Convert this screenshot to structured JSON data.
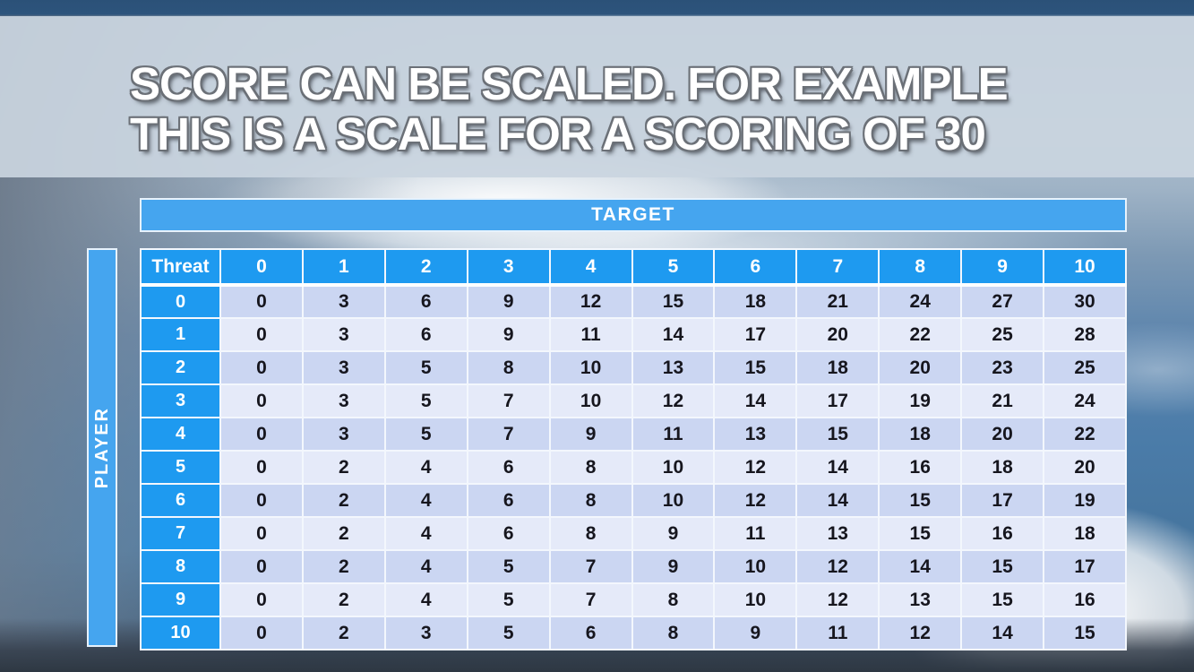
{
  "slide": {
    "title_line1": "SCORE CAN BE SCALED. FOR EXAMPLE",
    "title_line2": "THIS IS A SCALE FOR A SCORING OF 30"
  },
  "matrix": {
    "target_label": "TARGET",
    "player_label": "PLAYER",
    "corner_label": "Threat",
    "col_headers": [
      "0",
      "1",
      "2",
      "3",
      "4",
      "5",
      "6",
      "7",
      "8",
      "9",
      "10"
    ],
    "rows": [
      {
        "label": "0",
        "values": [
          0,
          3,
          6,
          9,
          12,
          15,
          18,
          21,
          24,
          27,
          30
        ]
      },
      {
        "label": "1",
        "values": [
          0,
          3,
          6,
          9,
          11,
          14,
          17,
          20,
          22,
          25,
          28
        ]
      },
      {
        "label": "2",
        "values": [
          0,
          3,
          5,
          8,
          10,
          13,
          15,
          18,
          20,
          23,
          25
        ]
      },
      {
        "label": "3",
        "values": [
          0,
          3,
          5,
          7,
          10,
          12,
          14,
          17,
          19,
          21,
          24
        ]
      },
      {
        "label": "4",
        "values": [
          0,
          3,
          5,
          7,
          9,
          11,
          13,
          15,
          18,
          20,
          22
        ]
      },
      {
        "label": "5",
        "values": [
          0,
          2,
          4,
          6,
          8,
          10,
          12,
          14,
          16,
          18,
          20
        ]
      },
      {
        "label": "6",
        "values": [
          0,
          2,
          4,
          6,
          8,
          10,
          12,
          14,
          15,
          17,
          19
        ]
      },
      {
        "label": "7",
        "values": [
          0,
          2,
          4,
          6,
          8,
          9,
          11,
          13,
          15,
          16,
          18
        ]
      },
      {
        "label": "8",
        "values": [
          0,
          2,
          4,
          5,
          7,
          9,
          10,
          12,
          14,
          15,
          17
        ]
      },
      {
        "label": "9",
        "values": [
          0,
          2,
          4,
          5,
          7,
          8,
          10,
          12,
          13,
          15,
          16
        ]
      },
      {
        "label": "10",
        "values": [
          0,
          2,
          3,
          5,
          6,
          8,
          9,
          11,
          12,
          14,
          15
        ]
      }
    ]
  },
  "colors": {
    "header_blue": "#1E9AF0",
    "bar_blue": "#45A5EF",
    "row_even": "#CBD6F2",
    "row_odd": "#E5EAF9",
    "title_band": "#CAD5E0"
  }
}
